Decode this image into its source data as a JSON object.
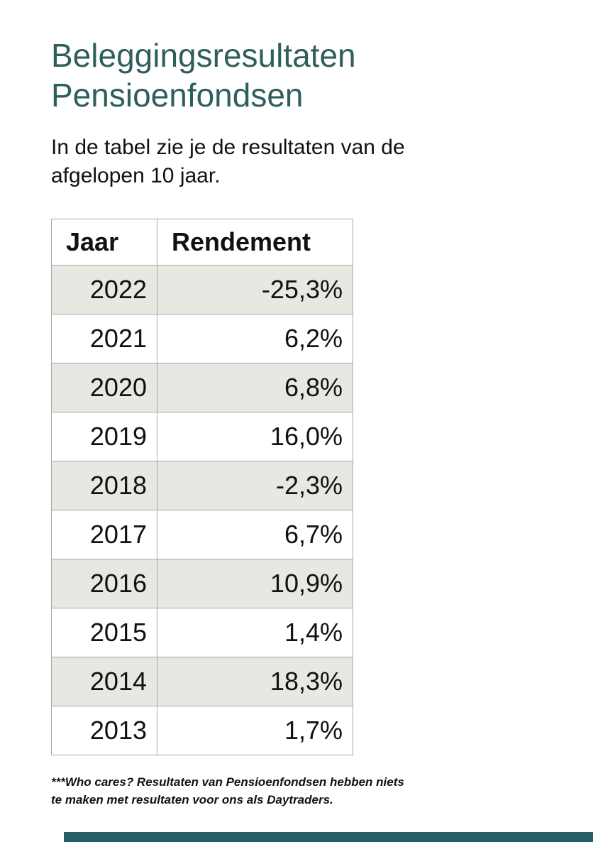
{
  "header": {
    "title_lines": [
      "Beleggingsresultaten",
      "Pensioenfondsen"
    ],
    "intro_lines": [
      "In de tabel zie je de resultaten van de",
      "afgelopen 10 jaar."
    ]
  },
  "table": {
    "headers": [
      "Jaar",
      "Rendement"
    ]
  },
  "chart_data": {
    "type": "table",
    "title": "Beleggingsresultaten Pensioenfondsen",
    "columns": [
      "Jaar",
      "Rendement"
    ],
    "rows": [
      [
        "2022",
        "-25,3%"
      ],
      [
        "2021",
        "6,2%"
      ],
      [
        "2020",
        "6,8%"
      ],
      [
        "2019",
        "16,0%"
      ],
      [
        "2018",
        "-2,3%"
      ],
      [
        "2017",
        "6,7%"
      ],
      [
        "2016",
        "10,9%"
      ],
      [
        "2015",
        "1,4%"
      ],
      [
        "2014",
        "18,3%"
      ],
      [
        "2013",
        "1,7%"
      ]
    ]
  },
  "footnote": {
    "lines": [
      "***Who cares? Resultaten van Pensioenfondsen hebben niets",
      "te maken met resultaten voor ons als Daytraders."
    ]
  },
  "colors": {
    "title": "#2e5f5d",
    "row_shade": "#e8e7e2",
    "table_border": "#a8a8a8",
    "bottom_bar": "#266067"
  }
}
